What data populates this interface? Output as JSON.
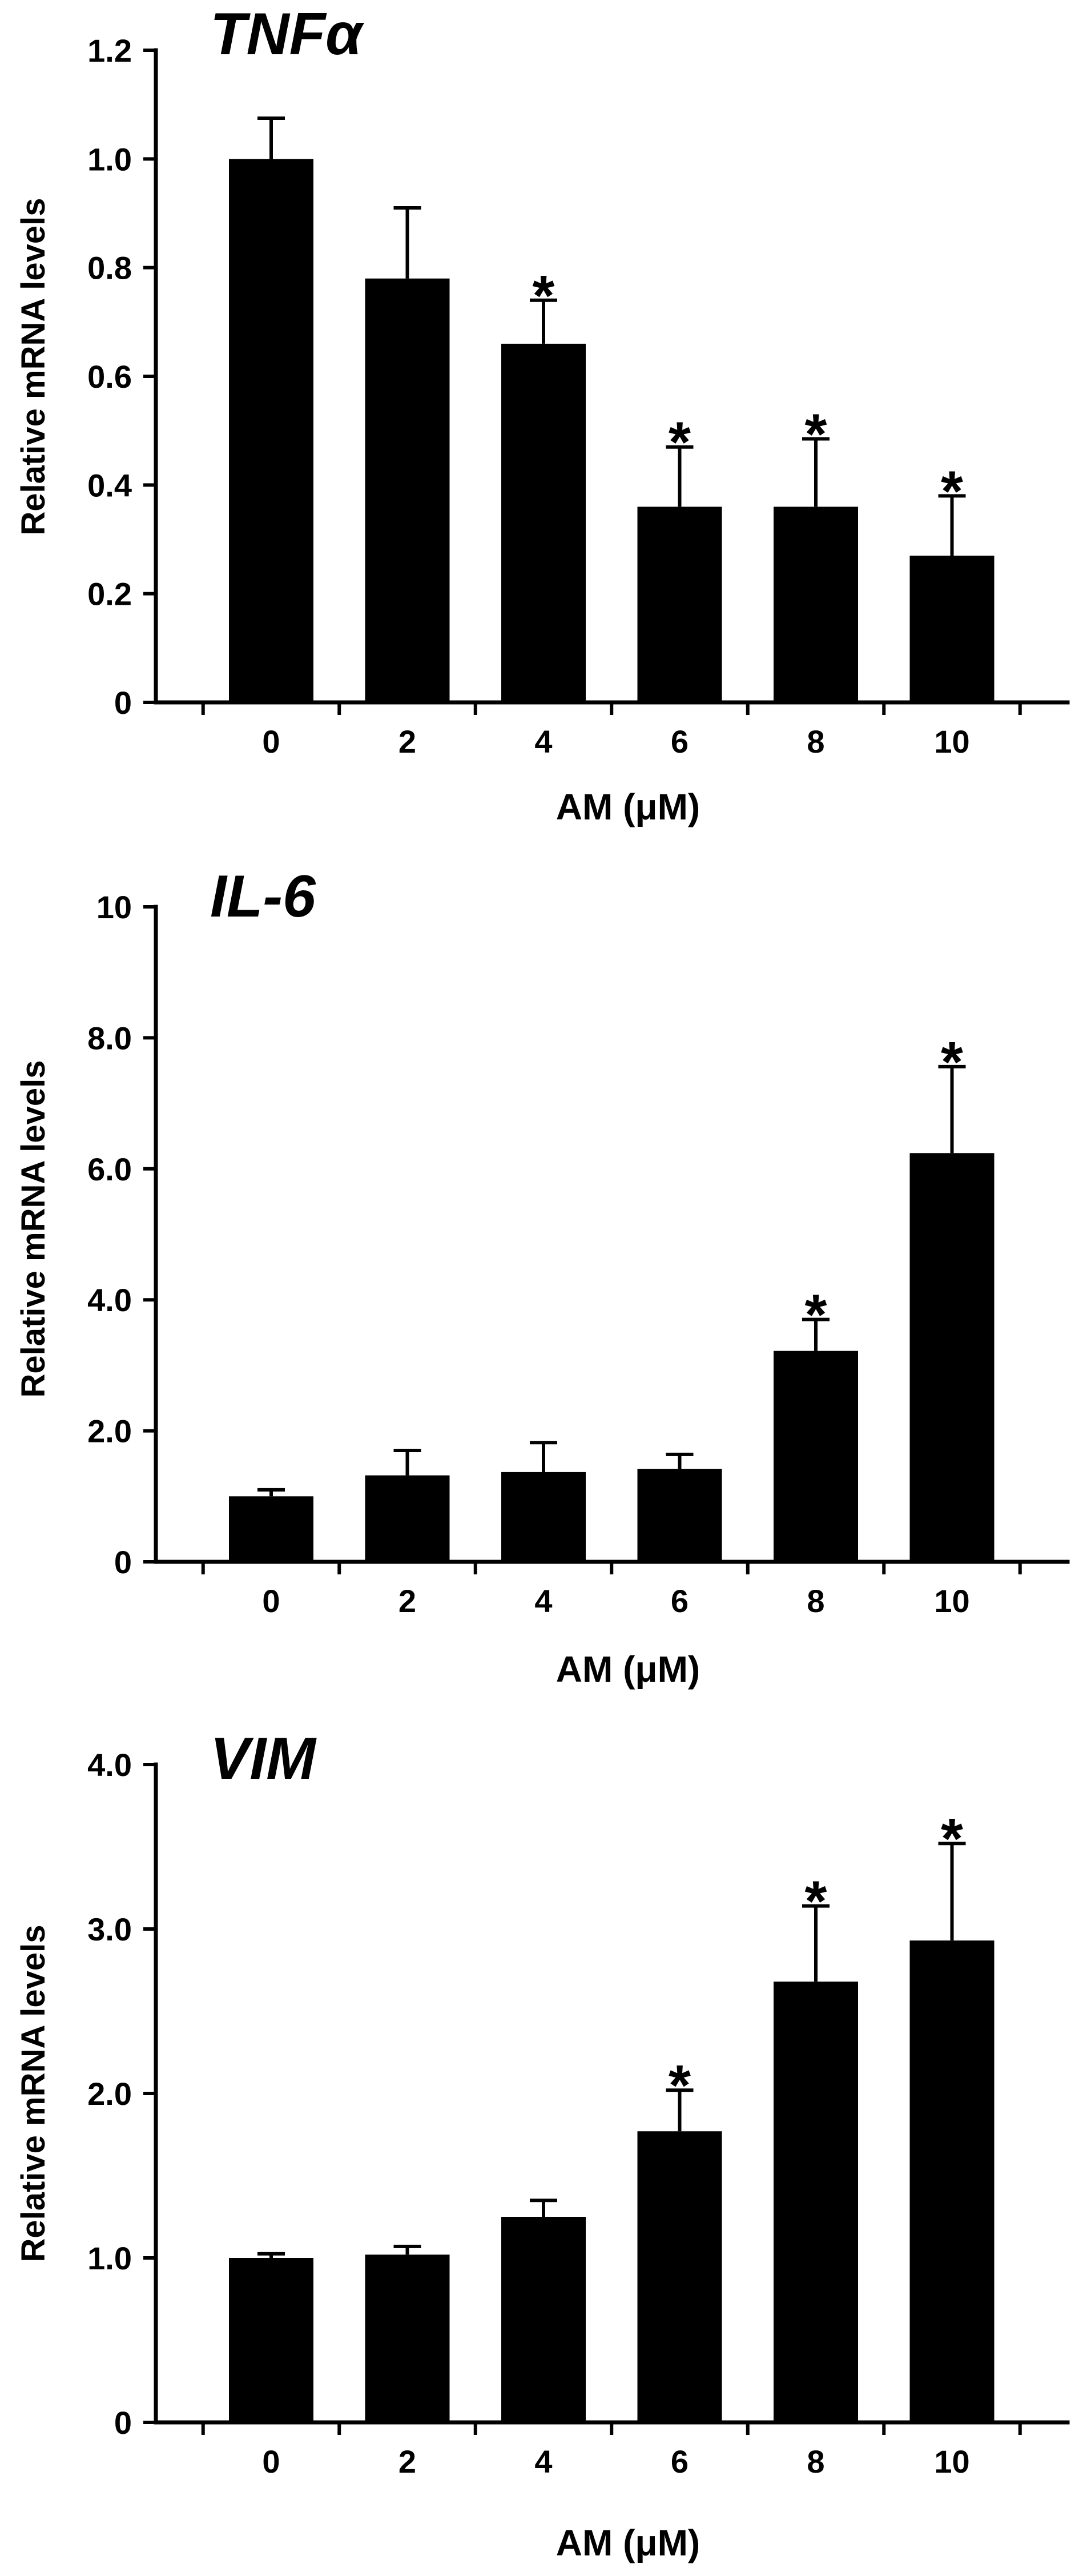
{
  "chart_data": [
    {
      "type": "bar",
      "title": "TNFα",
      "xlabel": "AM (μM)",
      "ylabel": "Relative mRNA levels",
      "categories": [
        "0",
        "2",
        "4",
        "6",
        "8",
        "10"
      ],
      "values": [
        1.0,
        0.78,
        0.66,
        0.36,
        0.36,
        0.27
      ],
      "errors": [
        0.075,
        0.13,
        0.08,
        0.11,
        0.125,
        0.11
      ],
      "significant": [
        false,
        false,
        true,
        true,
        true,
        true
      ],
      "sig_marker": "*",
      "ylim": [
        0,
        1.2
      ],
      "yticks": [
        0,
        0.2,
        0.4,
        0.6,
        0.8,
        1.0,
        1.2
      ],
      "ytick_labels": [
        "0",
        "0.2",
        "0.4",
        "0.6",
        "0.8",
        "1.0",
        "1.2"
      ],
      "bar_color": "#000000",
      "grid": false
    },
    {
      "type": "bar",
      "title": "IL-6",
      "xlabel": "AM (μM)",
      "ylabel": "Relative mRNA levels",
      "categories": [
        "0",
        "2",
        "4",
        "6",
        "8",
        "10"
      ],
      "values": [
        1.0,
        1.32,
        1.37,
        1.42,
        3.22,
        6.24
      ],
      "errors": [
        0.1,
        0.38,
        0.45,
        0.22,
        0.48,
        1.32
      ],
      "significant": [
        false,
        false,
        false,
        false,
        true,
        true
      ],
      "sig_marker": "*",
      "ylim": [
        0,
        10
      ],
      "yticks": [
        0,
        2,
        4,
        6,
        8,
        10
      ],
      "ytick_labels": [
        "0",
        "2.0",
        "4.0",
        "6.0",
        "8.0",
        "10"
      ],
      "bar_color": "#000000",
      "grid": false
    },
    {
      "type": "bar",
      "title": "VIM",
      "xlabel": "AM (μM)",
      "ylabel": "Relative mRNA levels",
      "categories": [
        "0",
        "2",
        "4",
        "6",
        "8",
        "10"
      ],
      "values": [
        1.0,
        1.02,
        1.25,
        1.77,
        2.68,
        2.93
      ],
      "errors": [
        0.025,
        0.05,
        0.1,
        0.25,
        0.46,
        0.59
      ],
      "significant": [
        false,
        false,
        false,
        true,
        true,
        true
      ],
      "sig_marker": "*",
      "ylim": [
        0,
        4.0
      ],
      "yticks": [
        0,
        1,
        2,
        3,
        4
      ],
      "ytick_labels": [
        "0",
        "1.0",
        "2.0",
        "3.0",
        "4.0"
      ],
      "bar_color": "#000000",
      "grid": false
    }
  ]
}
